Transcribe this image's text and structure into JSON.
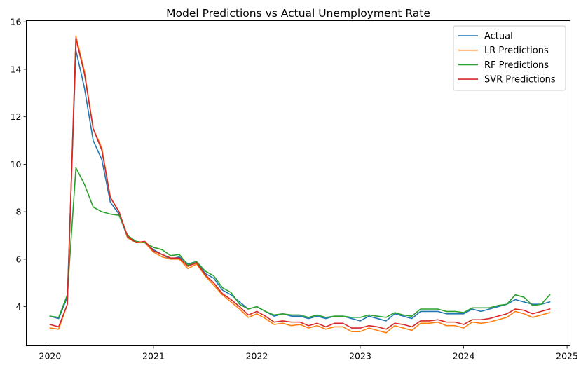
{
  "chart_data": {
    "type": "line",
    "title": "Model Predictions vs Actual Unemployment Rate",
    "xlabel": "",
    "ylabel": "",
    "xlim": [
      2019.77,
      2025.03
    ],
    "ylim": [
      2.35,
      16.05
    ],
    "x_ticks": [
      2020,
      2021,
      2022,
      2023,
      2024,
      2025
    ],
    "y_ticks": [
      4,
      6,
      8,
      10,
      12,
      14,
      16
    ],
    "grid": false,
    "legend_position": "top-right",
    "x": [
      2020.0,
      2020.083,
      2020.167,
      2020.25,
      2020.333,
      2020.417,
      2020.5,
      2020.583,
      2020.667,
      2020.75,
      2020.833,
      2020.917,
      2021.0,
      2021.083,
      2021.167,
      2021.25,
      2021.333,
      2021.417,
      2021.5,
      2021.583,
      2021.667,
      2021.75,
      2021.833,
      2021.917,
      2022.0,
      2022.083,
      2022.167,
      2022.25,
      2022.333,
      2022.417,
      2022.5,
      2022.583,
      2022.667,
      2022.75,
      2022.833,
      2022.917,
      2023.0,
      2023.083,
      2023.167,
      2023.25,
      2023.333,
      2023.417,
      2023.5,
      2023.583,
      2023.667,
      2023.75,
      2023.833,
      2023.917,
      2024.0,
      2024.083,
      2024.167,
      2024.25,
      2024.333,
      2024.417,
      2024.5,
      2024.583,
      2024.667,
      2024.75,
      2024.833
    ],
    "series": [
      {
        "name": "Actual",
        "color": "#1f77b4",
        "values": [
          3.6,
          3.5,
          4.4,
          14.8,
          13.2,
          11.0,
          10.2,
          8.4,
          7.9,
          6.9,
          6.7,
          6.7,
          6.4,
          6.2,
          6.0,
          6.1,
          5.8,
          5.9,
          5.4,
          5.2,
          4.7,
          4.5,
          4.2,
          3.9,
          4.0,
          3.8,
          3.6,
          3.7,
          3.6,
          3.6,
          3.5,
          3.6,
          3.5,
          3.6,
          3.6,
          3.5,
          3.4,
          3.6,
          3.5,
          3.4,
          3.7,
          3.6,
          3.5,
          3.8,
          3.8,
          3.8,
          3.7,
          3.7,
          3.7,
          3.9,
          3.8,
          3.9,
          4.0,
          4.1,
          4.3,
          4.2,
          4.1,
          4.1,
          4.2
        ]
      },
      {
        "name": "LR Predictions",
        "color": "#ff7f0e",
        "values": [
          3.1,
          3.05,
          4.1,
          15.4,
          13.9,
          11.5,
          10.7,
          8.6,
          8.0,
          6.9,
          6.7,
          6.7,
          6.3,
          6.1,
          6.0,
          6.0,
          5.6,
          5.8,
          5.3,
          4.9,
          4.5,
          4.2,
          3.9,
          3.55,
          3.7,
          3.5,
          3.25,
          3.3,
          3.2,
          3.25,
          3.1,
          3.2,
          3.05,
          3.15,
          3.15,
          2.95,
          2.95,
          3.1,
          3.0,
          2.9,
          3.2,
          3.1,
          3.0,
          3.3,
          3.3,
          3.35,
          3.2,
          3.2,
          3.1,
          3.35,
          3.3,
          3.35,
          3.45,
          3.55,
          3.8,
          3.7,
          3.55,
          3.65,
          3.75
        ]
      },
      {
        "name": "RF Predictions",
        "color": "#2ca02c",
        "values": [
          3.6,
          3.55,
          4.5,
          9.85,
          9.15,
          8.2,
          8.0,
          7.9,
          7.85,
          7.0,
          6.75,
          6.7,
          6.5,
          6.4,
          6.15,
          6.2,
          5.75,
          5.9,
          5.5,
          5.3,
          4.8,
          4.6,
          4.1,
          3.9,
          4.0,
          3.8,
          3.65,
          3.7,
          3.65,
          3.65,
          3.55,
          3.65,
          3.55,
          3.6,
          3.6,
          3.55,
          3.55,
          3.65,
          3.6,
          3.55,
          3.75,
          3.65,
          3.6,
          3.9,
          3.9,
          3.9,
          3.8,
          3.8,
          3.75,
          3.95,
          3.95,
          3.95,
          4.05,
          4.1,
          4.5,
          4.4,
          4.05,
          4.1,
          4.5
        ]
      },
      {
        "name": "SVR Predictions",
        "color": "#d62728",
        "values": [
          3.25,
          3.15,
          4.1,
          15.3,
          13.8,
          11.5,
          10.6,
          8.6,
          8.0,
          6.95,
          6.7,
          6.75,
          6.35,
          6.2,
          6.05,
          6.05,
          5.7,
          5.85,
          5.35,
          5.0,
          4.55,
          4.3,
          4.0,
          3.65,
          3.8,
          3.6,
          3.35,
          3.4,
          3.35,
          3.35,
          3.2,
          3.3,
          3.15,
          3.3,
          3.3,
          3.1,
          3.1,
          3.2,
          3.15,
          3.05,
          3.3,
          3.25,
          3.15,
          3.4,
          3.4,
          3.45,
          3.35,
          3.35,
          3.25,
          3.45,
          3.45,
          3.5,
          3.6,
          3.7,
          3.9,
          3.85,
          3.7,
          3.8,
          3.9
        ]
      }
    ]
  }
}
